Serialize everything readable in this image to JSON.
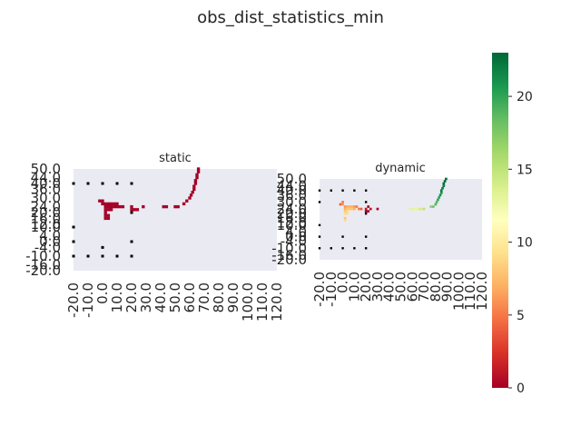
{
  "title": "obs_dist_statistics_min",
  "chart_data": [
    {
      "type": "heatmap",
      "title": "static",
      "colormap": "RdYlGn",
      "background": "#eaeaf2",
      "x_ticks": [
        "-20.0",
        "-10.0",
        "0.0",
        "10.0",
        "20.0",
        "30.0",
        "40.0",
        "50.0",
        "60.0",
        "70.0",
        "80.0",
        "90.0",
        "100.0",
        "110.0",
        "120.0"
      ],
      "y_ticks": [
        "50.0",
        "44.0",
        "40.0",
        "36.0",
        "30.0",
        "24.0",
        "20.0",
        "16.0",
        "12.0",
        "10.0",
        "4.0",
        "0.0",
        "-4.0",
        "-10.0",
        "-16.0",
        "-20.0"
      ],
      "xlim": [
        -20,
        120
      ],
      "ylim": [
        -20,
        50
      ],
      "markers": [
        [
          -20,
          40
        ],
        [
          -10,
          40
        ],
        [
          0,
          40
        ],
        [
          10,
          40
        ],
        [
          20,
          40
        ],
        [
          -20,
          10
        ],
        [
          -20,
          0
        ],
        [
          20,
          0
        ],
        [
          -20,
          -10
        ],
        [
          -10,
          -10
        ],
        [
          0,
          -10
        ],
        [
          10,
          -10
        ],
        [
          20,
          -10
        ],
        [
          0,
          -4
        ],
        [
          20,
          20
        ]
      ],
      "cells": [
        [
          66,
          50,
          0
        ],
        [
          66,
          48,
          0
        ],
        [
          65,
          46,
          0
        ],
        [
          65,
          44,
          0
        ],
        [
          64,
          42,
          0
        ],
        [
          64,
          40,
          0
        ],
        [
          63,
          38,
          0
        ],
        [
          63,
          36,
          0
        ],
        [
          62,
          34,
          0
        ],
        [
          61,
          32,
          0
        ],
        [
          60,
          30,
          0
        ],
        [
          58,
          28,
          0
        ],
        [
          56,
          26,
          0
        ],
        [
          52,
          24,
          0
        ],
        [
          50,
          24,
          0
        ],
        [
          44,
          24,
          0
        ],
        [
          42,
          24,
          0
        ],
        [
          22,
          22,
          0
        ],
        [
          20,
          22,
          0
        ],
        [
          20,
          24,
          0
        ],
        [
          14,
          24,
          0
        ],
        [
          12,
          24,
          0
        ],
        [
          10,
          24,
          0
        ],
        [
          8,
          24,
          0
        ],
        [
          6,
          24,
          0
        ],
        [
          4,
          24,
          0
        ],
        [
          2,
          24,
          0
        ],
        [
          2,
          26,
          0
        ],
        [
          0,
          26,
          0
        ],
        [
          0,
          28,
          0
        ],
        [
          4,
          26,
          0
        ],
        [
          6,
          26,
          0
        ],
        [
          8,
          26,
          0
        ],
        [
          10,
          26,
          0
        ],
        [
          2,
          22,
          0
        ],
        [
          4,
          22,
          0
        ],
        [
          6,
          22,
          0
        ],
        [
          2,
          20,
          0
        ],
        [
          2,
          18,
          0
        ],
        [
          4,
          18,
          0
        ],
        [
          2,
          16,
          0
        ],
        [
          4,
          16,
          0
        ],
        [
          24,
          22,
          0
        ],
        [
          28,
          24,
          0
        ],
        [
          -2,
          28,
          0
        ]
      ]
    },
    {
      "type": "heatmap",
      "title": "dynamic",
      "colormap": "RdYlGn",
      "background": "#eaeaf2",
      "x_ticks": [
        "-20.0",
        "-10.0",
        "0.0",
        "10.0",
        "20.0",
        "30.0",
        "40.0",
        "50.0",
        "60.0",
        "70.0",
        "80.0",
        "90.0",
        "100.0",
        "110.0",
        "120.0"
      ],
      "y_ticks": [
        "50.0",
        "44.0",
        "40.0",
        "36.0",
        "30.0",
        "24.0",
        "20.0",
        "16.0",
        "12.0",
        "10.0",
        "4.0",
        "0.0",
        "-4.0",
        "-10.0",
        "-16.0",
        "-20.0"
      ],
      "xlim": [
        -20,
        120
      ],
      "ylim": [
        -20,
        50
      ],
      "markers": [
        [
          -20,
          40
        ],
        [
          -10,
          40
        ],
        [
          0,
          40
        ],
        [
          10,
          40
        ],
        [
          20,
          40
        ],
        [
          -20,
          30
        ],
        [
          20,
          30
        ],
        [
          -20,
          10
        ],
        [
          -20,
          0
        ],
        [
          20,
          0
        ],
        [
          -20,
          -10
        ],
        [
          -10,
          -10
        ],
        [
          0,
          -10
        ],
        [
          10,
          -10
        ],
        [
          20,
          -10
        ],
        [
          0,
          0
        ],
        [
          20,
          20
        ]
      ],
      "cells": [
        [
          89,
          50,
          23
        ],
        [
          88,
          48,
          23
        ],
        [
          87,
          46,
          23
        ],
        [
          87,
          44,
          22
        ],
        [
          86,
          42,
          22
        ],
        [
          85,
          40,
          22
        ],
        [
          85,
          38,
          21
        ],
        [
          84,
          36,
          21
        ],
        [
          83,
          34,
          20
        ],
        [
          82,
          32,
          20
        ],
        [
          81,
          30,
          19
        ],
        [
          80,
          28,
          19
        ],
        [
          78,
          26,
          18
        ],
        [
          76,
          26,
          17
        ],
        [
          70,
          24,
          15
        ],
        [
          68,
          24,
          14
        ],
        [
          66,
          24,
          14
        ],
        [
          64,
          24,
          13
        ],
        [
          62,
          24,
          13
        ],
        [
          60,
          24,
          13
        ],
        [
          58,
          24,
          13
        ],
        [
          0,
          30,
          5
        ],
        [
          -2,
          28,
          4
        ],
        [
          0,
          28,
          6
        ],
        [
          2,
          26,
          6
        ],
        [
          4,
          26,
          7
        ],
        [
          6,
          26,
          7
        ],
        [
          8,
          26,
          7
        ],
        [
          10,
          26,
          6
        ],
        [
          12,
          26,
          5
        ],
        [
          2,
          24,
          7
        ],
        [
          4,
          24,
          8
        ],
        [
          6,
          24,
          8
        ],
        [
          8,
          24,
          8
        ],
        [
          10,
          24,
          7
        ],
        [
          14,
          24,
          5
        ],
        [
          16,
          24,
          4
        ],
        [
          2,
          22,
          8
        ],
        [
          4,
          22,
          9
        ],
        [
          2,
          20,
          9
        ],
        [
          4,
          20,
          9
        ],
        [
          2,
          16,
          8
        ],
        [
          2,
          14,
          9
        ],
        [
          20,
          24,
          1
        ],
        [
          20,
          22,
          0
        ],
        [
          22,
          22,
          0
        ],
        [
          22,
          26,
          0
        ],
        [
          24,
          24,
          1
        ],
        [
          30,
          24,
          0
        ]
      ]
    }
  ],
  "colorbar": {
    "colormap": "RdYlGn",
    "vmin": 0,
    "vmax": 23,
    "ticks": [
      "0",
      "5",
      "10",
      "15",
      "20"
    ]
  }
}
